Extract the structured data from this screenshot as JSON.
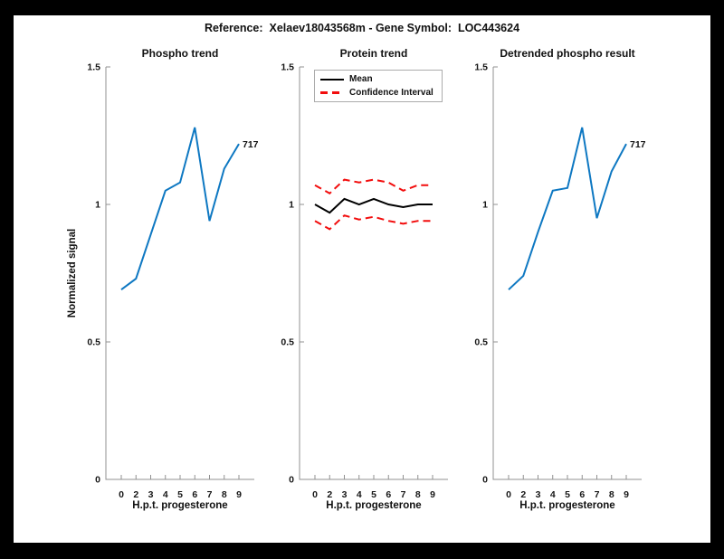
{
  "figure": {
    "title": "Reference:  Xelaev18043568m - Gene Symbol:  LOC443624",
    "ylabel": "Normalized signal",
    "frame_color": "#000000",
    "canvas_color": "#ffffff"
  },
  "style": {
    "axis_color": "#909090",
    "text_color": "#111111",
    "blue": "#0e78c2",
    "red": "#f20d0d",
    "black": "#000000"
  },
  "chart_data": [
    {
      "type": "line",
      "title": "Phospho trend",
      "xlabel": "H.p.t. progesterone",
      "ylabel": "Normalized signal",
      "end_label": "717",
      "x_ticks": [
        "0",
        "2",
        "3",
        "4",
        "5",
        "6",
        "7",
        "8",
        "9"
      ],
      "y_ticks": [
        {
          "v": 0,
          "label": "0"
        },
        {
          "v": 0.5,
          "label": "0.5"
        },
        {
          "v": 1,
          "label": "1"
        },
        {
          "v": 1.5,
          "label": "1.5"
        }
      ],
      "ylim": [
        0,
        1.5
      ],
      "grid": false,
      "series": [
        {
          "name": "phospho 717",
          "color": "#0e78c2",
          "dash": false,
          "values": [
            0.69,
            0.73,
            0.89,
            1.05,
            1.08,
            1.28,
            0.94,
            1.13,
            1.22
          ]
        }
      ]
    },
    {
      "type": "line",
      "title": "Protein trend",
      "xlabel": "H.p.t. progesterone",
      "x_ticks": [
        "0",
        "2",
        "3",
        "4",
        "5",
        "6",
        "7",
        "8",
        "9"
      ],
      "y_ticks": [
        {
          "v": 0,
          "label": "0"
        },
        {
          "v": 0.5,
          "label": "0.5"
        },
        {
          "v": 1,
          "label": "1"
        },
        {
          "v": 1.5,
          "label": "1.5"
        }
      ],
      "ylim": [
        0,
        1.5
      ],
      "grid": false,
      "legend": {
        "position": "top-left",
        "items": [
          {
            "label": "Mean",
            "color": "#000000",
            "dash": false
          },
          {
            "label": "Confidence Interval",
            "color": "#f20d0d",
            "dash": true
          }
        ]
      },
      "series": [
        {
          "name": "Mean",
          "color": "#000000",
          "dash": false,
          "values": [
            1.0,
            0.97,
            1.02,
            1.0,
            1.02,
            1.0,
            0.99,
            1.0,
            1.0
          ]
        },
        {
          "name": "Confidence Interval upper",
          "color": "#f20d0d",
          "dash": true,
          "values": [
            1.07,
            1.04,
            1.09,
            1.08,
            1.09,
            1.08,
            1.05,
            1.07,
            1.07
          ]
        },
        {
          "name": "Confidence Interval lower",
          "color": "#f20d0d",
          "dash": true,
          "values": [
            0.94,
            0.91,
            0.96,
            0.945,
            0.955,
            0.94,
            0.93,
            0.94,
            0.94
          ]
        }
      ]
    },
    {
      "type": "line",
      "title": "Detrended phospho result",
      "xlabel": "H.p.t. progesterone",
      "end_label": "717",
      "x_ticks": [
        "0",
        "2",
        "3",
        "4",
        "5",
        "6",
        "7",
        "8",
        "9"
      ],
      "y_ticks": [
        {
          "v": 0,
          "label": "0"
        },
        {
          "v": 0.5,
          "label": "0.5"
        },
        {
          "v": 1,
          "label": "1"
        },
        {
          "v": 1.5,
          "label": "1.5"
        }
      ],
      "ylim": [
        0,
        1.5
      ],
      "grid": false,
      "series": [
        {
          "name": "detrended phospho 717",
          "color": "#0e78c2",
          "dash": false,
          "values": [
            0.69,
            0.74,
            0.9,
            1.05,
            1.06,
            1.28,
            0.95,
            1.12,
            1.22
          ]
        }
      ]
    }
  ]
}
